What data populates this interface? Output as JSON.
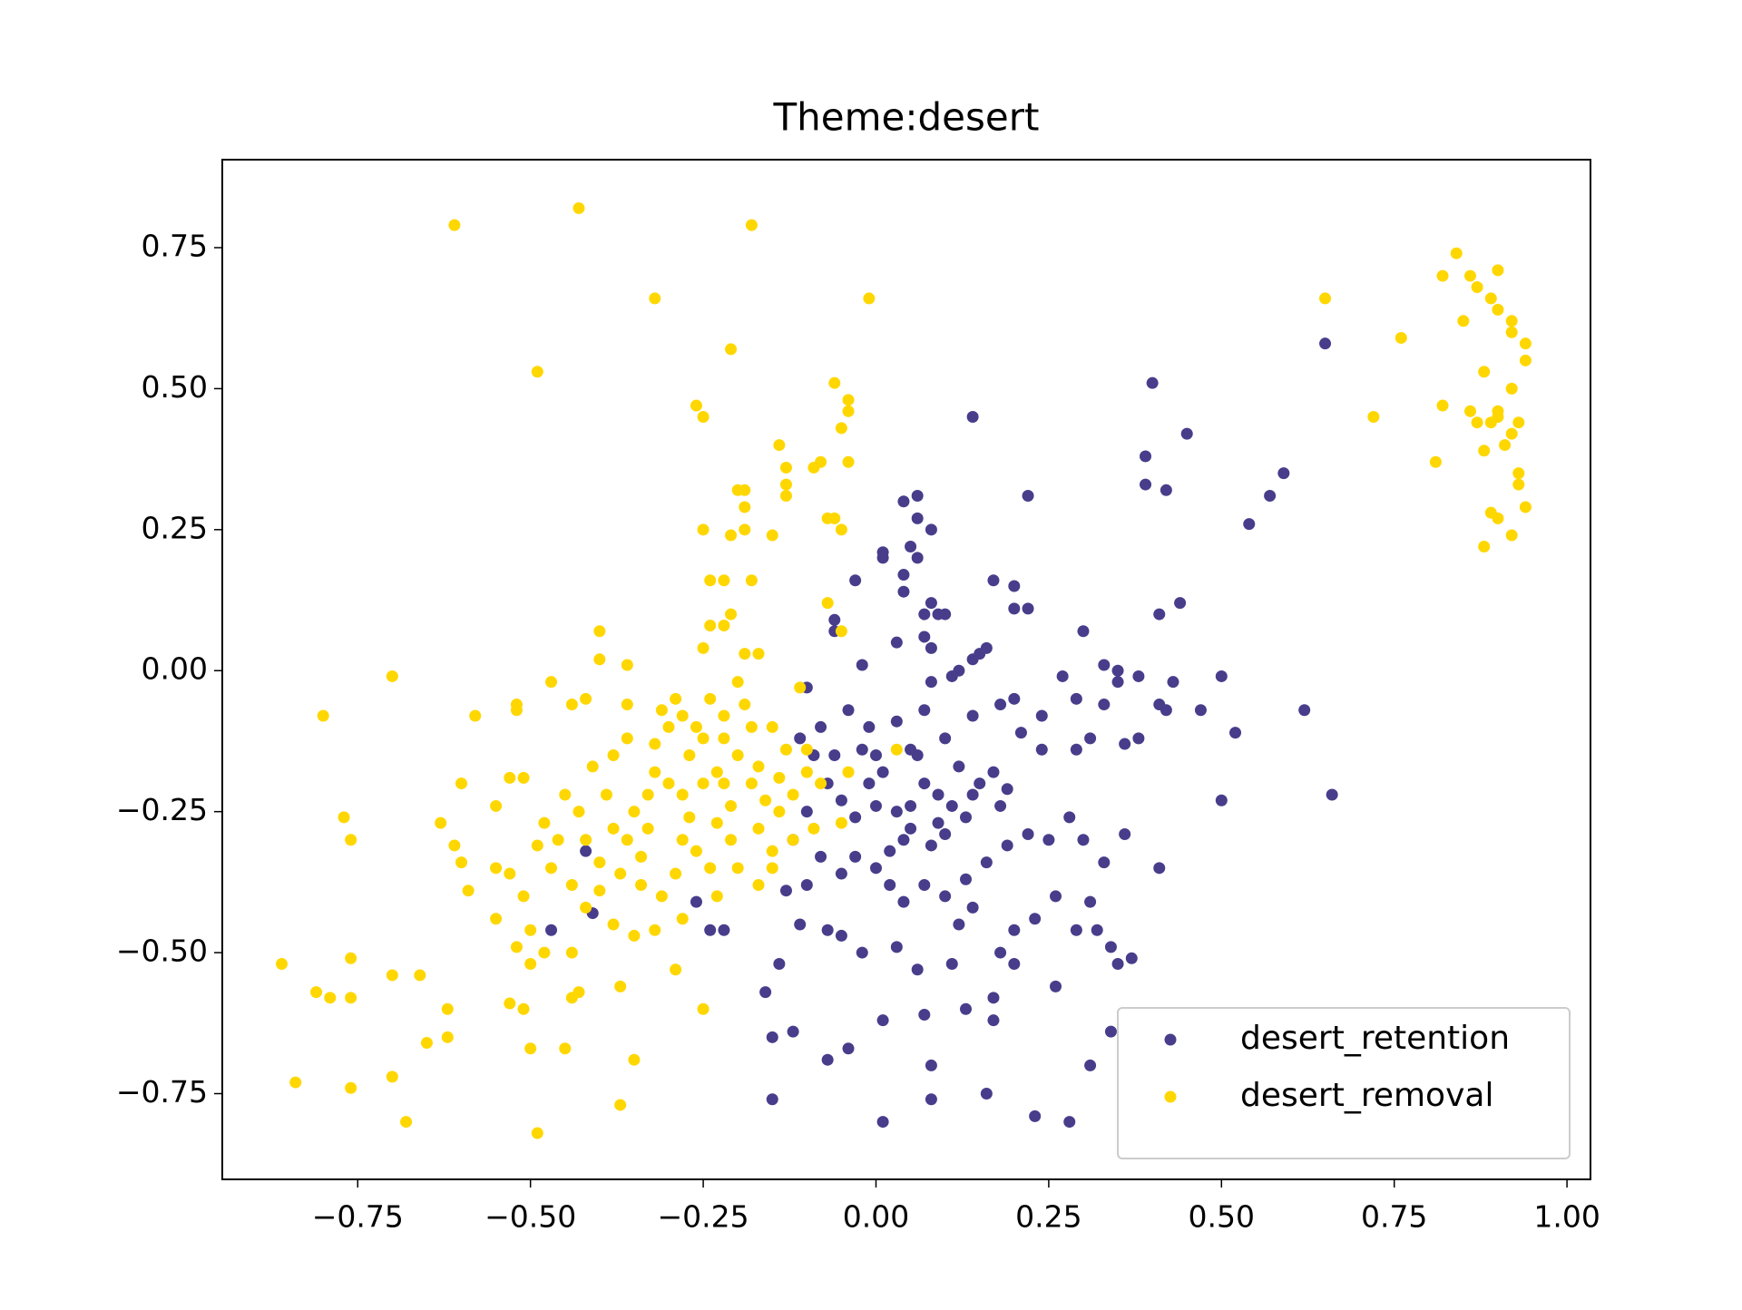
{
  "chart_data": {
    "type": "scatter",
    "title": "Theme:desert",
    "xlim": [
      -0.946,
      1.034
    ],
    "ylim": [
      -0.902,
      0.906
    ],
    "xticks": [
      {
        "value": -0.75,
        "label": "−0.75"
      },
      {
        "value": -0.5,
        "label": "−0.50"
      },
      {
        "value": -0.25,
        "label": "−0.25"
      },
      {
        "value": 0,
        "label": "0.00"
      },
      {
        "value": 0.25,
        "label": "0.25"
      },
      {
        "value": 0.5,
        "label": "0.50"
      },
      {
        "value": 0.75,
        "label": "0.75"
      },
      {
        "value": 1,
        "label": "1.00"
      }
    ],
    "yticks": [
      {
        "value": -0.75,
        "label": "−0.75"
      },
      {
        "value": -0.5,
        "label": "−0.50"
      },
      {
        "value": -0.25,
        "label": "−0.25"
      },
      {
        "value": 0,
        "label": "0.00"
      },
      {
        "value": 0.25,
        "label": "0.25"
      },
      {
        "value": 0.5,
        "label": "0.50"
      },
      {
        "value": 0.75,
        "label": "0.75"
      }
    ],
    "grid": false,
    "legend": "lower right",
    "series": [
      {
        "name": "desert_retention",
        "color": "#483d8b",
        "x": [
          0.65,
          0.4,
          0.14,
          0.45,
          0.39,
          0.39,
          0.42,
          0.59,
          0.57,
          0.54,
          0.22,
          0.06,
          0.04,
          0.06,
          0.08,
          0.05,
          0.06,
          0.01,
          0.01,
          0.04,
          -0.03,
          0.04,
          0.17,
          0.2,
          0.2,
          0.22,
          0.08,
          0.07,
          0.09,
          0.1,
          0.44,
          0.41,
          0.3,
          -0.06,
          -0.06,
          0.07,
          0.03,
          0.08,
          0.16,
          0.14,
          0.15,
          0.12,
          0.11,
          0.08,
          0.33,
          0.35,
          0.38,
          0.43,
          0.5,
          0.62,
          0.66,
          0.5,
          0.52,
          0.47,
          0.41,
          0.42,
          0.35,
          0.29,
          0.27,
          0.33,
          0.36,
          0.38,
          0.31,
          0.29,
          0.24,
          0.21,
          -0.02,
          -0.1,
          -0.04,
          -0.01,
          0.03,
          0.05,
          0.1,
          0.12,
          0.15,
          0.18,
          0.13,
          0.1,
          0.08,
          0.05,
          0.03,
          0.0,
          -0.03,
          -0.05,
          -0.07,
          -0.1,
          -0.12,
          -0.08,
          -0.05,
          -0.03,
          0.0,
          0.02,
          0.04,
          0.07,
          0.1,
          0.13,
          0.16,
          0.19,
          0.22,
          0.25,
          0.28,
          0.3,
          0.33,
          0.36,
          0.41,
          0.26,
          0.23,
          0.2,
          0.18,
          0.2,
          0.26,
          0.29,
          0.32,
          0.34,
          0.35,
          0.37,
          0.31,
          0.14,
          0.12,
          0.06,
          0.11,
          0.03,
          -0.02,
          -0.05,
          -0.07,
          -0.11,
          -0.14,
          -0.16,
          -0.22,
          -0.24,
          -0.26,
          -0.13,
          -0.1,
          -0.15,
          -0.12,
          -0.07,
          -0.04,
          -0.15,
          0.01,
          0.07,
          0.13,
          0.17,
          0.17,
          0.08,
          0.08,
          0.16,
          0.23,
          0.28,
          0.01,
          0.31,
          0.34,
          -0.47,
          -0.41,
          -0.42,
          0.06,
          0.07,
          0.09,
          0.04,
          0.02,
          -0.01,
          0.01,
          0.05,
          0.09,
          0.11,
          0.14,
          0.17,
          0.19,
          -0.09,
          -0.06,
          -0.02,
          0.0,
          -0.11,
          -0.08,
          0.07,
          0.14,
          0.18,
          0.2,
          0.24
        ],
        "values": [
          0.58,
          0.51,
          0.45,
          0.42,
          0.38,
          0.33,
          0.32,
          0.35,
          0.31,
          0.26,
          0.31,
          0.31,
          0.3,
          0.27,
          0.25,
          0.22,
          0.2,
          0.21,
          0.2,
          0.17,
          0.16,
          0.14,
          0.16,
          0.15,
          0.11,
          0.11,
          0.12,
          0.1,
          0.1,
          0.1,
          0.12,
          0.1,
          0.07,
          0.09,
          0.07,
          0.06,
          0.05,
          0.04,
          0.04,
          0.02,
          0.03,
          0.0,
          -0.01,
          -0.02,
          0.01,
          0.0,
          -0.01,
          -0.02,
          -0.01,
          -0.07,
          -0.22,
          -0.23,
          -0.11,
          -0.07,
          -0.06,
          -0.07,
          -0.02,
          -0.05,
          -0.01,
          -0.06,
          -0.13,
          -0.12,
          -0.12,
          -0.14,
          -0.14,
          -0.11,
          0.01,
          -0.03,
          -0.07,
          -0.1,
          -0.09,
          -0.14,
          -0.12,
          -0.17,
          -0.2,
          -0.24,
          -0.26,
          -0.29,
          -0.31,
          -0.28,
          -0.25,
          -0.24,
          -0.26,
          -0.23,
          -0.2,
          -0.25,
          -0.3,
          -0.33,
          -0.36,
          -0.33,
          -0.35,
          -0.38,
          -0.41,
          -0.38,
          -0.4,
          -0.37,
          -0.34,
          -0.31,
          -0.29,
          -0.3,
          -0.26,
          -0.3,
          -0.34,
          -0.29,
          -0.35,
          -0.4,
          -0.44,
          -0.46,
          -0.5,
          -0.52,
          -0.56,
          -0.46,
          -0.46,
          -0.49,
          -0.52,
          -0.51,
          -0.41,
          -0.42,
          -0.45,
          -0.53,
          -0.52,
          -0.49,
          -0.5,
          -0.47,
          -0.46,
          -0.45,
          -0.52,
          -0.57,
          -0.46,
          -0.46,
          -0.41,
          -0.39,
          -0.38,
          -0.65,
          -0.64,
          -0.69,
          -0.67,
          -0.76,
          -0.62,
          -0.61,
          -0.6,
          -0.58,
          -0.62,
          -0.7,
          -0.76,
          -0.75,
          -0.79,
          -0.8,
          -0.8,
          -0.7,
          -0.64,
          -0.46,
          -0.43,
          -0.32,
          -0.15,
          -0.2,
          -0.22,
          -0.3,
          -0.32,
          -0.2,
          -0.18,
          -0.24,
          -0.27,
          -0.24,
          -0.22,
          -0.18,
          -0.21,
          -0.15,
          -0.15,
          -0.14,
          -0.15,
          -0.12,
          -0.1,
          -0.07,
          -0.08,
          -0.06,
          -0.05,
          -0.08
        ]
      },
      {
        "name": "desert_removal",
        "color": "#ffd700",
        "x": [
          -0.61,
          -0.43,
          -0.18,
          -0.32,
          -0.01,
          -0.49,
          -0.21,
          -0.26,
          -0.25,
          -0.06,
          -0.04,
          -0.04,
          -0.05,
          -0.04,
          -0.14,
          -0.09,
          -0.08,
          -0.13,
          -0.13,
          -0.13,
          -0.19,
          -0.2,
          -0.19,
          -0.07,
          -0.06,
          -0.05,
          -0.19,
          -0.15,
          -0.21,
          -0.25,
          -0.24,
          -0.22,
          -0.18,
          -0.07,
          -0.21,
          -0.22,
          -0.24,
          -0.05,
          -0.4,
          -0.25,
          -0.19,
          -0.17,
          -0.4,
          -0.36,
          -0.7,
          -0.47,
          -0.8,
          -0.58,
          -0.52,
          -0.52,
          -0.44,
          -0.42,
          -0.36,
          -0.11,
          -0.6,
          -0.53,
          -0.51,
          -0.55,
          -0.77,
          -0.76,
          -0.63,
          -0.61,
          -0.6,
          -0.59,
          -0.55,
          -0.53,
          -0.51,
          -0.55,
          -0.5,
          -0.52,
          -0.48,
          -0.44,
          -0.5,
          -0.86,
          -0.81,
          -0.79,
          -0.76,
          -0.76,
          -0.7,
          -0.66,
          -0.62,
          -0.53,
          -0.51,
          -0.44,
          -0.43,
          -0.37,
          -0.29,
          -0.25,
          -0.65,
          -0.62,
          -0.5,
          -0.45,
          -0.35,
          -0.84,
          -0.76,
          -0.7,
          -0.68,
          -0.49,
          -0.37,
          -0.3,
          -0.28,
          -0.32,
          -0.35,
          -0.33,
          -0.27,
          -0.25,
          -0.29,
          -0.28,
          -0.26,
          -0.22,
          -0.2,
          -0.18,
          -0.16,
          -0.17,
          -0.15,
          -0.14,
          -0.12,
          -0.13,
          -0.15,
          -0.1,
          -0.1,
          -0.21,
          -0.23,
          -0.24,
          -0.26,
          -0.29,
          -0.31,
          -0.34,
          -0.37,
          -0.4,
          -0.42,
          -0.39,
          -0.41,
          -0.38,
          -0.36,
          -0.32,
          -0.3,
          -0.31,
          -0.24,
          -0.2,
          -0.22,
          -0.18,
          -0.19,
          -0.46,
          -0.47,
          -0.44,
          -0.42,
          -0.38,
          -0.35,
          -0.32,
          -0.28,
          -0.23,
          -0.2,
          -0.17,
          -0.15,
          -0.12,
          -0.09,
          -0.05,
          -0.08,
          -0.04,
          0.03,
          -0.36,
          -0.33,
          -0.27,
          -0.25,
          -0.23,
          -0.21,
          -0.43,
          -0.45,
          -0.48,
          -0.49,
          -0.4,
          -0.38,
          -0.34,
          -0.28,
          -0.22,
          -0.17,
          -0.14,
          0.65,
          0.76,
          0.72,
          0.81,
          0.82,
          0.82,
          0.84,
          0.85,
          0.86,
          0.87,
          0.89,
          0.9,
          0.9,
          0.92,
          0.92,
          0.94,
          0.94,
          0.93,
          0.92,
          0.91,
          0.92,
          0.88,
          0.86,
          0.87,
          0.89,
          0.9,
          0.88,
          0.93,
          0.93,
          0.92,
          0.94,
          0.89,
          0.9,
          0.88,
          0.9
        ],
        "values": [
          0.79,
          0.82,
          0.79,
          0.66,
          0.66,
          0.53,
          0.57,
          0.47,
          0.45,
          0.51,
          0.48,
          0.46,
          0.43,
          0.37,
          0.4,
          0.36,
          0.37,
          0.36,
          0.33,
          0.31,
          0.32,
          0.32,
          0.29,
          0.27,
          0.27,
          0.25,
          0.25,
          0.24,
          0.24,
          0.25,
          0.16,
          0.16,
          0.16,
          0.12,
          0.1,
          0.08,
          0.08,
          0.07,
          0.07,
          0.04,
          0.03,
          0.03,
          0.02,
          0.01,
          -0.01,
          -0.02,
          -0.08,
          -0.08,
          -0.06,
          -0.07,
          -0.06,
          -0.05,
          -0.06,
          -0.03,
          -0.2,
          -0.19,
          -0.19,
          -0.24,
          -0.26,
          -0.3,
          -0.27,
          -0.31,
          -0.34,
          -0.39,
          -0.35,
          -0.36,
          -0.4,
          -0.44,
          -0.46,
          -0.49,
          -0.5,
          -0.5,
          -0.52,
          -0.52,
          -0.57,
          -0.58,
          -0.58,
          -0.51,
          -0.54,
          -0.54,
          -0.6,
          -0.59,
          -0.6,
          -0.58,
          -0.57,
          -0.56,
          -0.53,
          -0.6,
          -0.66,
          -0.65,
          -0.67,
          -0.67,
          -0.69,
          -0.73,
          -0.74,
          -0.72,
          -0.8,
          -0.82,
          -0.77,
          -0.2,
          -0.22,
          -0.18,
          -0.25,
          -0.28,
          -0.15,
          -0.12,
          -0.05,
          -0.08,
          -0.1,
          -0.12,
          -0.15,
          -0.2,
          -0.23,
          -0.28,
          -0.32,
          -0.25,
          -0.22,
          -0.14,
          -0.1,
          -0.14,
          -0.18,
          -0.3,
          -0.27,
          -0.35,
          -0.32,
          -0.36,
          -0.4,
          -0.38,
          -0.36,
          -0.34,
          -0.3,
          -0.22,
          -0.17,
          -0.15,
          -0.12,
          -0.13,
          -0.1,
          -0.07,
          -0.05,
          -0.02,
          -0.08,
          -0.1,
          -0.06,
          -0.3,
          -0.35,
          -0.38,
          -0.42,
          -0.45,
          -0.47,
          -0.46,
          -0.44,
          -0.4,
          -0.35,
          -0.38,
          -0.35,
          -0.3,
          -0.28,
          -0.27,
          -0.2,
          -0.18,
          -0.14,
          -0.3,
          -0.22,
          -0.26,
          -0.2,
          -0.18,
          -0.24,
          -0.25,
          -0.22,
          -0.27,
          -0.31,
          -0.39,
          -0.28,
          -0.33,
          -0.3,
          -0.2,
          -0.17,
          -0.19,
          0.66,
          0.59,
          0.45,
          0.37,
          0.47,
          0.7,
          0.74,
          0.62,
          0.7,
          0.68,
          0.66,
          0.64,
          0.71,
          0.62,
          0.6,
          0.58,
          0.55,
          0.44,
          0.42,
          0.4,
          0.5,
          0.53,
          0.46,
          0.44,
          0.44,
          0.45,
          0.39,
          0.35,
          0.33,
          0.24,
          0.29,
          0.28,
          0.27,
          0.22,
          0.46
        ]
      }
    ]
  }
}
